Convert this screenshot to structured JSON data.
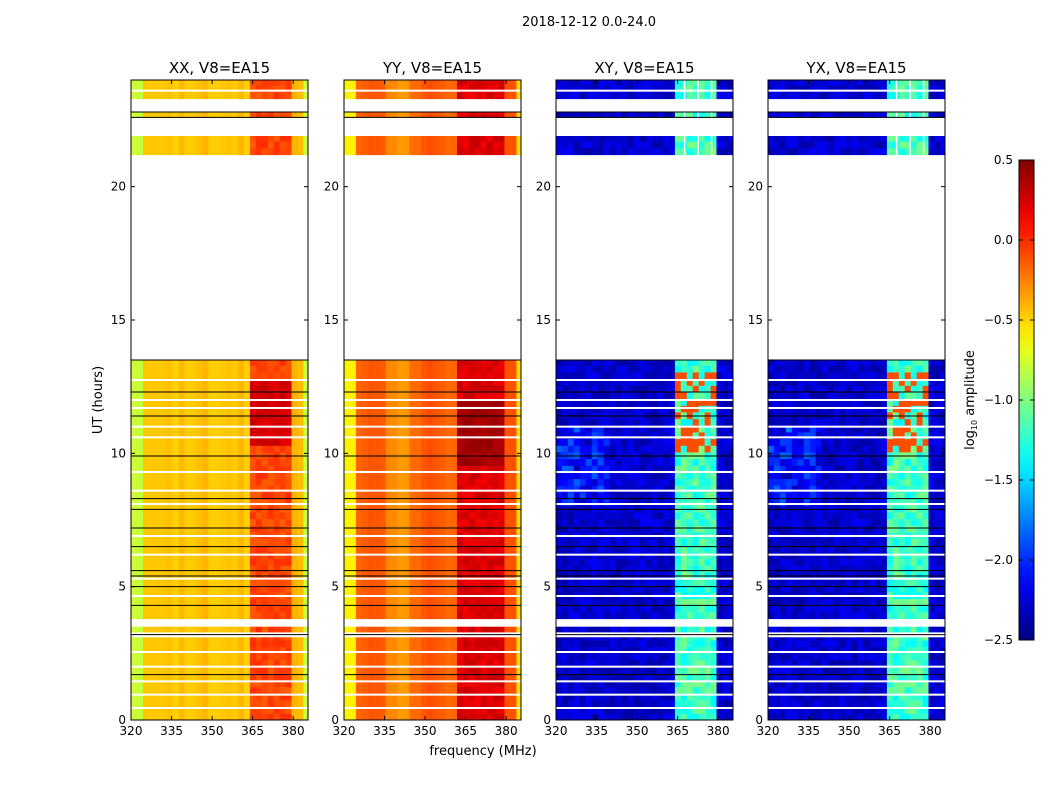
{
  "chart_data": {
    "type": "heatmap",
    "title": "2018-12-12 0.0-24.0",
    "xlabel": "frequency (MHz)",
    "ylabel": "UT (hours)",
    "xlim": [
      320,
      385.5
    ],
    "ylim": [
      0,
      24
    ],
    "xticks": [
      "320",
      "335",
      "350",
      "365",
      "380"
    ],
    "xtick_values": [
      320,
      335,
      350,
      365,
      380
    ],
    "yticks": [
      "0",
      "5",
      "10",
      "15",
      "20"
    ],
    "ytick_values": [
      0,
      5,
      10,
      15,
      20
    ],
    "colorbar": {
      "label_prefix": "log",
      "label_sub": "10",
      "label_suffix": " amplitude",
      "vmin": -2.5,
      "vmax": 0.5,
      "cmap": "jet",
      "ticks": [
        "0.5",
        "0.0",
        "−0.5",
        "−1.0",
        "−1.5",
        "−2.0",
        "−2.5"
      ],
      "tick_values": [
        0.5,
        0.0,
        -0.5,
        -1.0,
        -1.5,
        -2.0,
        -2.5
      ]
    },
    "data_intervals_hours": [
      [
        0,
        3.1
      ],
      [
        3.3,
        3.5
      ],
      [
        3.8,
        13.5
      ],
      [
        21.2,
        21.9
      ],
      [
        22.6,
        22.8
      ],
      [
        23.3,
        24
      ]
    ],
    "flagged_white_lines_hours": [
      0.45,
      0.95,
      1.45,
      2.0,
      2.55,
      4.65,
      5.3,
      6.2,
      6.9,
      8.1,
      8.6,
      9.3,
      10.6,
      11.0,
      11.7,
      12.0,
      12.75,
      23.6
    ],
    "black_lines_hours": [
      1.7,
      3.2,
      4.3,
      5.0,
      5.4,
      5.6,
      6.5,
      7.2,
      7.9,
      8.3,
      9.9,
      11.4,
      12.3,
      13.5,
      22.6,
      22.8
    ],
    "panels": [
      {
        "title": "XX, V8=EA15",
        "base": -0.5,
        "edge": -0.85,
        "band_lo": 363,
        "band_hi": 380,
        "band": -0.15,
        "band_peak_hours": [
          10.2,
          12.7
        ],
        "band_peak": 0.2,
        "mid_dip": 0
      },
      {
        "title": "YY, V8=EA15",
        "base": -0.2,
        "edge": -0.6,
        "band_lo": 362,
        "band_hi": 380,
        "band": 0.15,
        "band_peak_hours": [
          9.5,
          12.0
        ],
        "band_peak": 0.35,
        "mid_dip": -0.25
      },
      {
        "title": "XY, V8=EA15",
        "base": -2.4,
        "edge": -2.4,
        "band_lo": 363,
        "band_hi": 379,
        "band": -1.0,
        "band_peak_hours": [
          10.0,
          13.0
        ],
        "band_peak": -0.1,
        "mid_dip": 0
      },
      {
        "title": "YX, V8=EA15",
        "base": -2.4,
        "edge": -2.4,
        "band_lo": 363,
        "band_hi": 379,
        "band": -1.0,
        "band_peak_hours": [
          10.0,
          13.0
        ],
        "band_peak": -0.1,
        "mid_dip": 0
      }
    ]
  }
}
